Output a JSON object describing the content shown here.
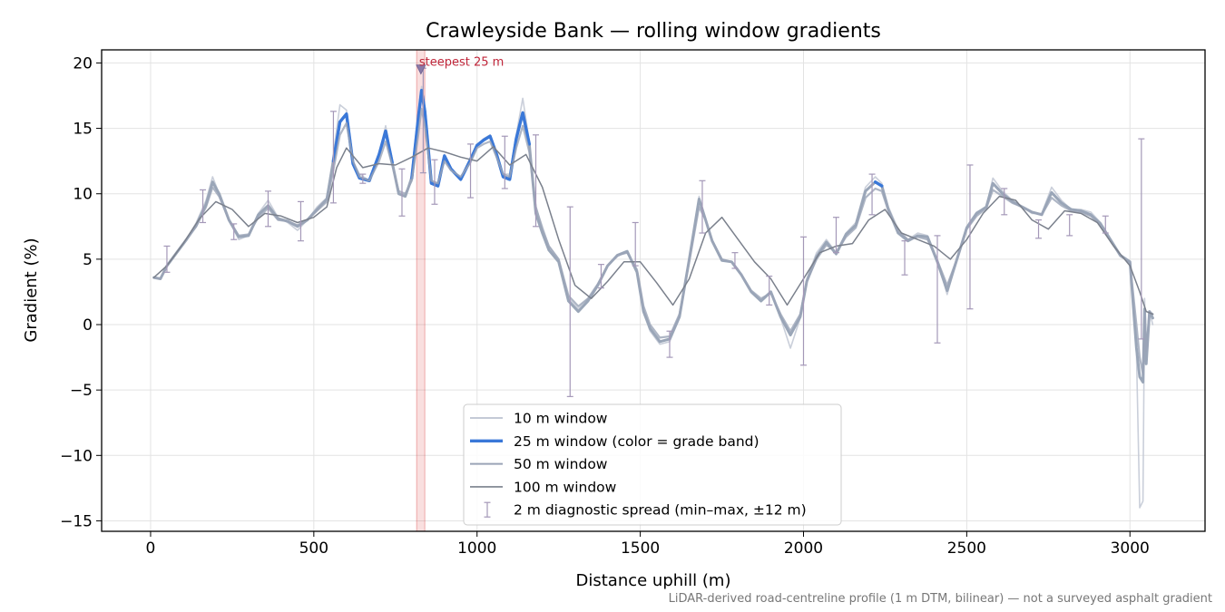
{
  "chart_data": {
    "type": "line",
    "title": "Crawleyside Bank — rolling window gradients",
    "xlabel": "Distance uphill (m)",
    "ylabel": "Gradient (%)",
    "xlim": [
      -150,
      3230
    ],
    "ylim": [
      -15.8,
      21.0
    ],
    "x_ticks": [
      0,
      500,
      1000,
      1500,
      2000,
      2500,
      3000
    ],
    "y_ticks": [
      -15,
      -10,
      -5,
      0,
      5,
      10,
      15,
      20
    ],
    "grid": true,
    "legend_position": "lower-center",
    "footnote": "LiDAR-derived road-centreline profile (1 m DTM, bilinear) — not a surveyed asphalt gradient",
    "highlight": {
      "label": "steepest 25 m",
      "x_start": 815,
      "x_end": 840,
      "peak_x": 828,
      "peak_y": 19.5,
      "color": "#d62728"
    },
    "colors": {
      "w10": "#c4cad6",
      "w25_base": "#9aa6b8",
      "w25_steep": "#3a78d8",
      "w50": "#9aa4b6",
      "w100": "#7a808c",
      "errorbar": "#a498b8"
    },
    "steep_threshold": 10.5,
    "series": [
      {
        "name": "10 m window",
        "key": "w10",
        "x": [
          10,
          30,
          50,
          80,
          110,
          140,
          170,
          190,
          210,
          240,
          270,
          300,
          330,
          360,
          390,
          420,
          450,
          480,
          510,
          540,
          560,
          580,
          600,
          620,
          640,
          670,
          700,
          720,
          740,
          760,
          780,
          800,
          820,
          830,
          840,
          860,
          880,
          900,
          920,
          950,
          980,
          1000,
          1020,
          1040,
          1060,
          1080,
          1100,
          1120,
          1140,
          1160,
          1180,
          1200,
          1220,
          1250,
          1280,
          1310,
          1340,
          1370,
          1400,
          1430,
          1460,
          1490,
          1510,
          1530,
          1560,
          1590,
          1620,
          1650,
          1680,
          1700,
          1720,
          1750,
          1780,
          1810,
          1840,
          1870,
          1900,
          1930,
          1960,
          1990,
          2010,
          2040,
          2070,
          2100,
          2130,
          2160,
          2190,
          2220,
          2240,
          2260,
          2290,
          2320,
          2350,
          2380,
          2410,
          2440,
          2470,
          2500,
          2530,
          2560,
          2580,
          2610,
          2640,
          2670,
          2700,
          2730,
          2760,
          2790,
          2820,
          2850,
          2880,
          2910,
          2940,
          2970,
          3000,
          3020,
          3030,
          3040,
          3045,
          3050,
          3060,
          3070
        ],
        "y": [
          3.6,
          3.5,
          4.5,
          5.5,
          6.5,
          7.8,
          9.5,
          11.3,
          10,
          8,
          6.5,
          6.8,
          8.5,
          9.5,
          8.2,
          7.8,
          7.2,
          8,
          9,
          9.7,
          13,
          16.8,
          16.4,
          12.5,
          11.5,
          11,
          13,
          15.2,
          12.5,
          10,
          9.8,
          11.5,
          16,
          18.2,
          16.5,
          11,
          10.8,
          13,
          12,
          11.2,
          12.8,
          13.7,
          14.2,
          14.5,
          13,
          11.5,
          11.5,
          14.5,
          17.3,
          14,
          9,
          7.5,
          6,
          5,
          2,
          1.2,
          2,
          3,
          4.5,
          5.2,
          5.6,
          4,
          1,
          -0.5,
          -1.5,
          -1.3,
          0.5,
          5,
          9.8,
          8,
          6.5,
          5,
          4.8,
          3.8,
          2.5,
          1.8,
          2.5,
          0.5,
          -1.8,
          0.5,
          3.5,
          5.5,
          6.5,
          5.5,
          7,
          7.8,
          10.5,
          11.3,
          10.8,
          9,
          7.3,
          6.5,
          7,
          6.8,
          5,
          2.3,
          5,
          7.5,
          8.6,
          9,
          11.2,
          10.2,
          9.5,
          9,
          8.5,
          8.5,
          10.5,
          9.5,
          8.8,
          8.8,
          8.6,
          7.8,
          6.5,
          5.2,
          4.8,
          -2,
          -14,
          -13.5,
          2,
          -3,
          1,
          0
        ]
      },
      {
        "name": "25 m window (color = grade band)",
        "key": "w25",
        "x": [
          10,
          30,
          50,
          80,
          110,
          140,
          170,
          190,
          210,
          240,
          270,
          300,
          330,
          360,
          390,
          420,
          450,
          480,
          510,
          540,
          560,
          580,
          600,
          620,
          640,
          670,
          700,
          720,
          740,
          760,
          780,
          800,
          820,
          830,
          840,
          860,
          880,
          900,
          920,
          950,
          980,
          1000,
          1020,
          1040,
          1060,
          1080,
          1100,
          1120,
          1140,
          1160,
          1180,
          1200,
          1220,
          1250,
          1280,
          1310,
          1340,
          1370,
          1400,
          1430,
          1460,
          1490,
          1510,
          1530,
          1560,
          1590,
          1620,
          1650,
          1680,
          1700,
          1720,
          1750,
          1780,
          1810,
          1840,
          1870,
          1900,
          1930,
          1960,
          1990,
          2010,
          2040,
          2070,
          2100,
          2130,
          2160,
          2190,
          2220,
          2240,
          2260,
          2290,
          2320,
          2350,
          2380,
          2410,
          2440,
          2470,
          2500,
          2530,
          2560,
          2580,
          2610,
          2640,
          2670,
          2700,
          2730,
          2760,
          2790,
          2820,
          2850,
          2880,
          2910,
          2940,
          2970,
          3000,
          3020,
          3030,
          3040,
          3045,
          3050,
          3060,
          3070
        ],
        "y": [
          3.6,
          3.5,
          4.5,
          5.5,
          6.5,
          7.6,
          9.2,
          10.9,
          10,
          8,
          6.7,
          6.8,
          8.4,
          9.1,
          8.1,
          7.9,
          7.5,
          8,
          8.8,
          9.6,
          12.5,
          15.5,
          16.1,
          12.3,
          11.2,
          11,
          13,
          14.8,
          12.4,
          10,
          9.8,
          11.2,
          15.8,
          17.9,
          16.3,
          10.8,
          10.6,
          12.9,
          11.9,
          11.1,
          12.6,
          13.7,
          14.1,
          14.4,
          13,
          11.3,
          11.1,
          14.2,
          16.2,
          13.8,
          8.5,
          7,
          5.7,
          4.8,
          1.8,
          1,
          1.8,
          3,
          4.5,
          5.3,
          5.6,
          4,
          1,
          -0.3,
          -1.3,
          -1.1,
          0.6,
          5,
          9.6,
          8,
          6.4,
          4.9,
          4.8,
          3.8,
          2.5,
          1.8,
          2.5,
          0.6,
          -0.8,
          0.6,
          3.3,
          5.2,
          6.3,
          5.4,
          6.9,
          7.6,
          10.2,
          10.9,
          10.6,
          8.8,
          7,
          6.4,
          6.8,
          6.7,
          4.8,
          2.6,
          5,
          7.4,
          8.5,
          9,
          10.8,
          10,
          9.4,
          9,
          8.6,
          8.4,
          10.1,
          9.3,
          8.8,
          8.7,
          8.4,
          7.7,
          6.5,
          5.3,
          4.8,
          -1.8,
          -4,
          -4.4,
          1.2,
          -3,
          1,
          0.5
        ]
      },
      {
        "name": "50 m window",
        "key": "w50",
        "x": [
          10,
          30,
          50,
          80,
          110,
          140,
          170,
          190,
          210,
          240,
          270,
          300,
          330,
          360,
          390,
          420,
          450,
          480,
          510,
          540,
          560,
          580,
          600,
          620,
          640,
          670,
          700,
          720,
          740,
          760,
          780,
          800,
          820,
          830,
          840,
          860,
          880,
          900,
          920,
          950,
          980,
          1000,
          1020,
          1040,
          1060,
          1080,
          1100,
          1120,
          1140,
          1160,
          1180,
          1200,
          1220,
          1250,
          1280,
          1310,
          1340,
          1370,
          1400,
          1430,
          1460,
          1490,
          1510,
          1530,
          1560,
          1590,
          1620,
          1650,
          1680,
          1700,
          1720,
          1750,
          1780,
          1810,
          1840,
          1870,
          1900,
          1930,
          1960,
          1990,
          2010,
          2040,
          2070,
          2100,
          2130,
          2160,
          2190,
          2220,
          2240,
          2260,
          2290,
          2320,
          2350,
          2380,
          2410,
          2440,
          2470,
          2500,
          2530,
          2560,
          2580,
          2610,
          2640,
          2670,
          2700,
          2730,
          2760,
          2790,
          2820,
          2850,
          2880,
          2910,
          2940,
          2970,
          3000,
          3020,
          3030,
          3040,
          3045,
          3050,
          3060,
          3070
        ],
        "y": [
          3.6,
          3.5,
          4.5,
          5.5,
          6.5,
          7.5,
          9,
          10.5,
          9.8,
          8,
          6.8,
          6.9,
          8.2,
          8.9,
          8,
          7.9,
          7.6,
          8,
          8.7,
          9.4,
          11.8,
          14.5,
          15.4,
          12.5,
          11.3,
          11,
          12.5,
          14,
          12.2,
          10.2,
          10,
          11,
          14.5,
          16.5,
          15.2,
          11,
          10.8,
          12.5,
          11.8,
          11.3,
          12.4,
          13.5,
          13.8,
          14,
          12.8,
          11.5,
          11.3,
          13.5,
          15.2,
          13.2,
          9,
          7.3,
          6,
          5,
          2.2,
          1.4,
          2,
          3.1,
          4.5,
          5.3,
          5.5,
          4.2,
          1.4,
          0,
          -1,
          -0.9,
          0.8,
          4.8,
          9,
          8,
          6.4,
          5,
          4.8,
          3.8,
          2.6,
          2,
          2.4,
          0.8,
          -0.5,
          0.8,
          3.3,
          5,
          6.1,
          5.5,
          6.7,
          7.4,
          9.7,
          10.4,
          10.2,
          8.7,
          7.1,
          6.5,
          6.7,
          6.5,
          4.9,
          3,
          5,
          7.3,
          8.3,
          8.9,
          10.3,
          9.8,
          9.3,
          9,
          8.6,
          8.4,
          9.7,
          9.1,
          8.7,
          8.6,
          8.3,
          7.6,
          6.4,
          5.3,
          4.7,
          0,
          -2.5,
          -3.8,
          0.5,
          -2,
          1,
          0.8
        ]
      },
      {
        "name": "100 m window",
        "key": "w100",
        "x": [
          10,
          50,
          100,
          150,
          200,
          250,
          300,
          350,
          400,
          450,
          500,
          540,
          570,
          600,
          650,
          700,
          750,
          800,
          850,
          900,
          950,
          1000,
          1050,
          1100,
          1150,
          1200,
          1250,
          1300,
          1350,
          1400,
          1450,
          1500,
          1550,
          1600,
          1650,
          1700,
          1750,
          1800,
          1850,
          1900,
          1950,
          2000,
          2050,
          2100,
          2150,
          2200,
          2250,
          2300,
          2350,
          2400,
          2450,
          2500,
          2550,
          2600,
          2650,
          2700,
          2750,
          2800,
          2850,
          2900,
          2950,
          3000,
          3030,
          3050,
          3070
        ],
        "y": [
          3.6,
          4.5,
          6.2,
          8.1,
          9.4,
          8.8,
          7.5,
          8.5,
          8.3,
          7.8,
          8.2,
          9,
          12,
          13.5,
          12,
          12.3,
          12.2,
          12.8,
          13.5,
          13.2,
          12.8,
          12.5,
          13.6,
          12.2,
          13,
          10.5,
          6.5,
          3,
          2,
          3.3,
          4.8,
          4.8,
          3.2,
          1.5,
          3.5,
          7,
          8.2,
          6.5,
          4.8,
          3.5,
          1.5,
          3.5,
          5.5,
          6,
          6.2,
          8,
          8.8,
          7,
          6.5,
          6,
          5,
          6.5,
          8.5,
          9.8,
          9.5,
          8,
          7.3,
          8.7,
          8.5,
          7.8,
          6,
          4.5,
          2.5,
          1,
          0.8
        ]
      }
    ],
    "errorbars": {
      "name": "2 m diagnostic spread (min–max, ±12 m)",
      "points": [
        {
          "x": 50,
          "lo": 4.0,
          "hi": 6.0
        },
        {
          "x": 160,
          "lo": 7.8,
          "hi": 10.3
        },
        {
          "x": 255,
          "lo": 6.5,
          "hi": 7.7
        },
        {
          "x": 360,
          "lo": 7.5,
          "hi": 10.2
        },
        {
          "x": 460,
          "lo": 6.4,
          "hi": 9.4
        },
        {
          "x": 560,
          "lo": 9.3,
          "hi": 16.3
        },
        {
          "x": 650,
          "lo": 10.8,
          "hi": 11.5
        },
        {
          "x": 770,
          "lo": 8.3,
          "hi": 11.9
        },
        {
          "x": 835,
          "lo": 11.6,
          "hi": 19.6
        },
        {
          "x": 870,
          "lo": 9.2,
          "hi": 12.6
        },
        {
          "x": 980,
          "lo": 9.7,
          "hi": 13.8
        },
        {
          "x": 1085,
          "lo": 10.4,
          "hi": 14.4
        },
        {
          "x": 1180,
          "lo": 7.5,
          "hi": 14.5
        },
        {
          "x": 1285,
          "lo": -5.5,
          "hi": 9.0
        },
        {
          "x": 1380,
          "lo": 2.8,
          "hi": 4.6
        },
        {
          "x": 1485,
          "lo": 4.5,
          "hi": 7.8
        },
        {
          "x": 1590,
          "lo": -2.5,
          "hi": -0.5
        },
        {
          "x": 1690,
          "lo": 7.0,
          "hi": 11.0
        },
        {
          "x": 1790,
          "lo": 4.3,
          "hi": 5.5
        },
        {
          "x": 1895,
          "lo": 1.5,
          "hi": 3.7
        },
        {
          "x": 2000,
          "lo": -3.1,
          "hi": 6.7
        },
        {
          "x": 2100,
          "lo": 5.5,
          "hi": 8.2
        },
        {
          "x": 2210,
          "lo": 8.4,
          "hi": 11.5
        },
        {
          "x": 2310,
          "lo": 3.8,
          "hi": 6.4
        },
        {
          "x": 2410,
          "lo": -1.4,
          "hi": 6.8
        },
        {
          "x": 2510,
          "lo": 1.2,
          "hi": 12.2
        },
        {
          "x": 2615,
          "lo": 8.4,
          "hi": 10.4
        },
        {
          "x": 2720,
          "lo": 6.6,
          "hi": 8.0
        },
        {
          "x": 2815,
          "lo": 6.8,
          "hi": 8.4
        },
        {
          "x": 2925,
          "lo": 7.0,
          "hi": 8.3
        },
        {
          "x": 3035,
          "lo": -1.1,
          "hi": 14.2
        }
      ]
    }
  }
}
